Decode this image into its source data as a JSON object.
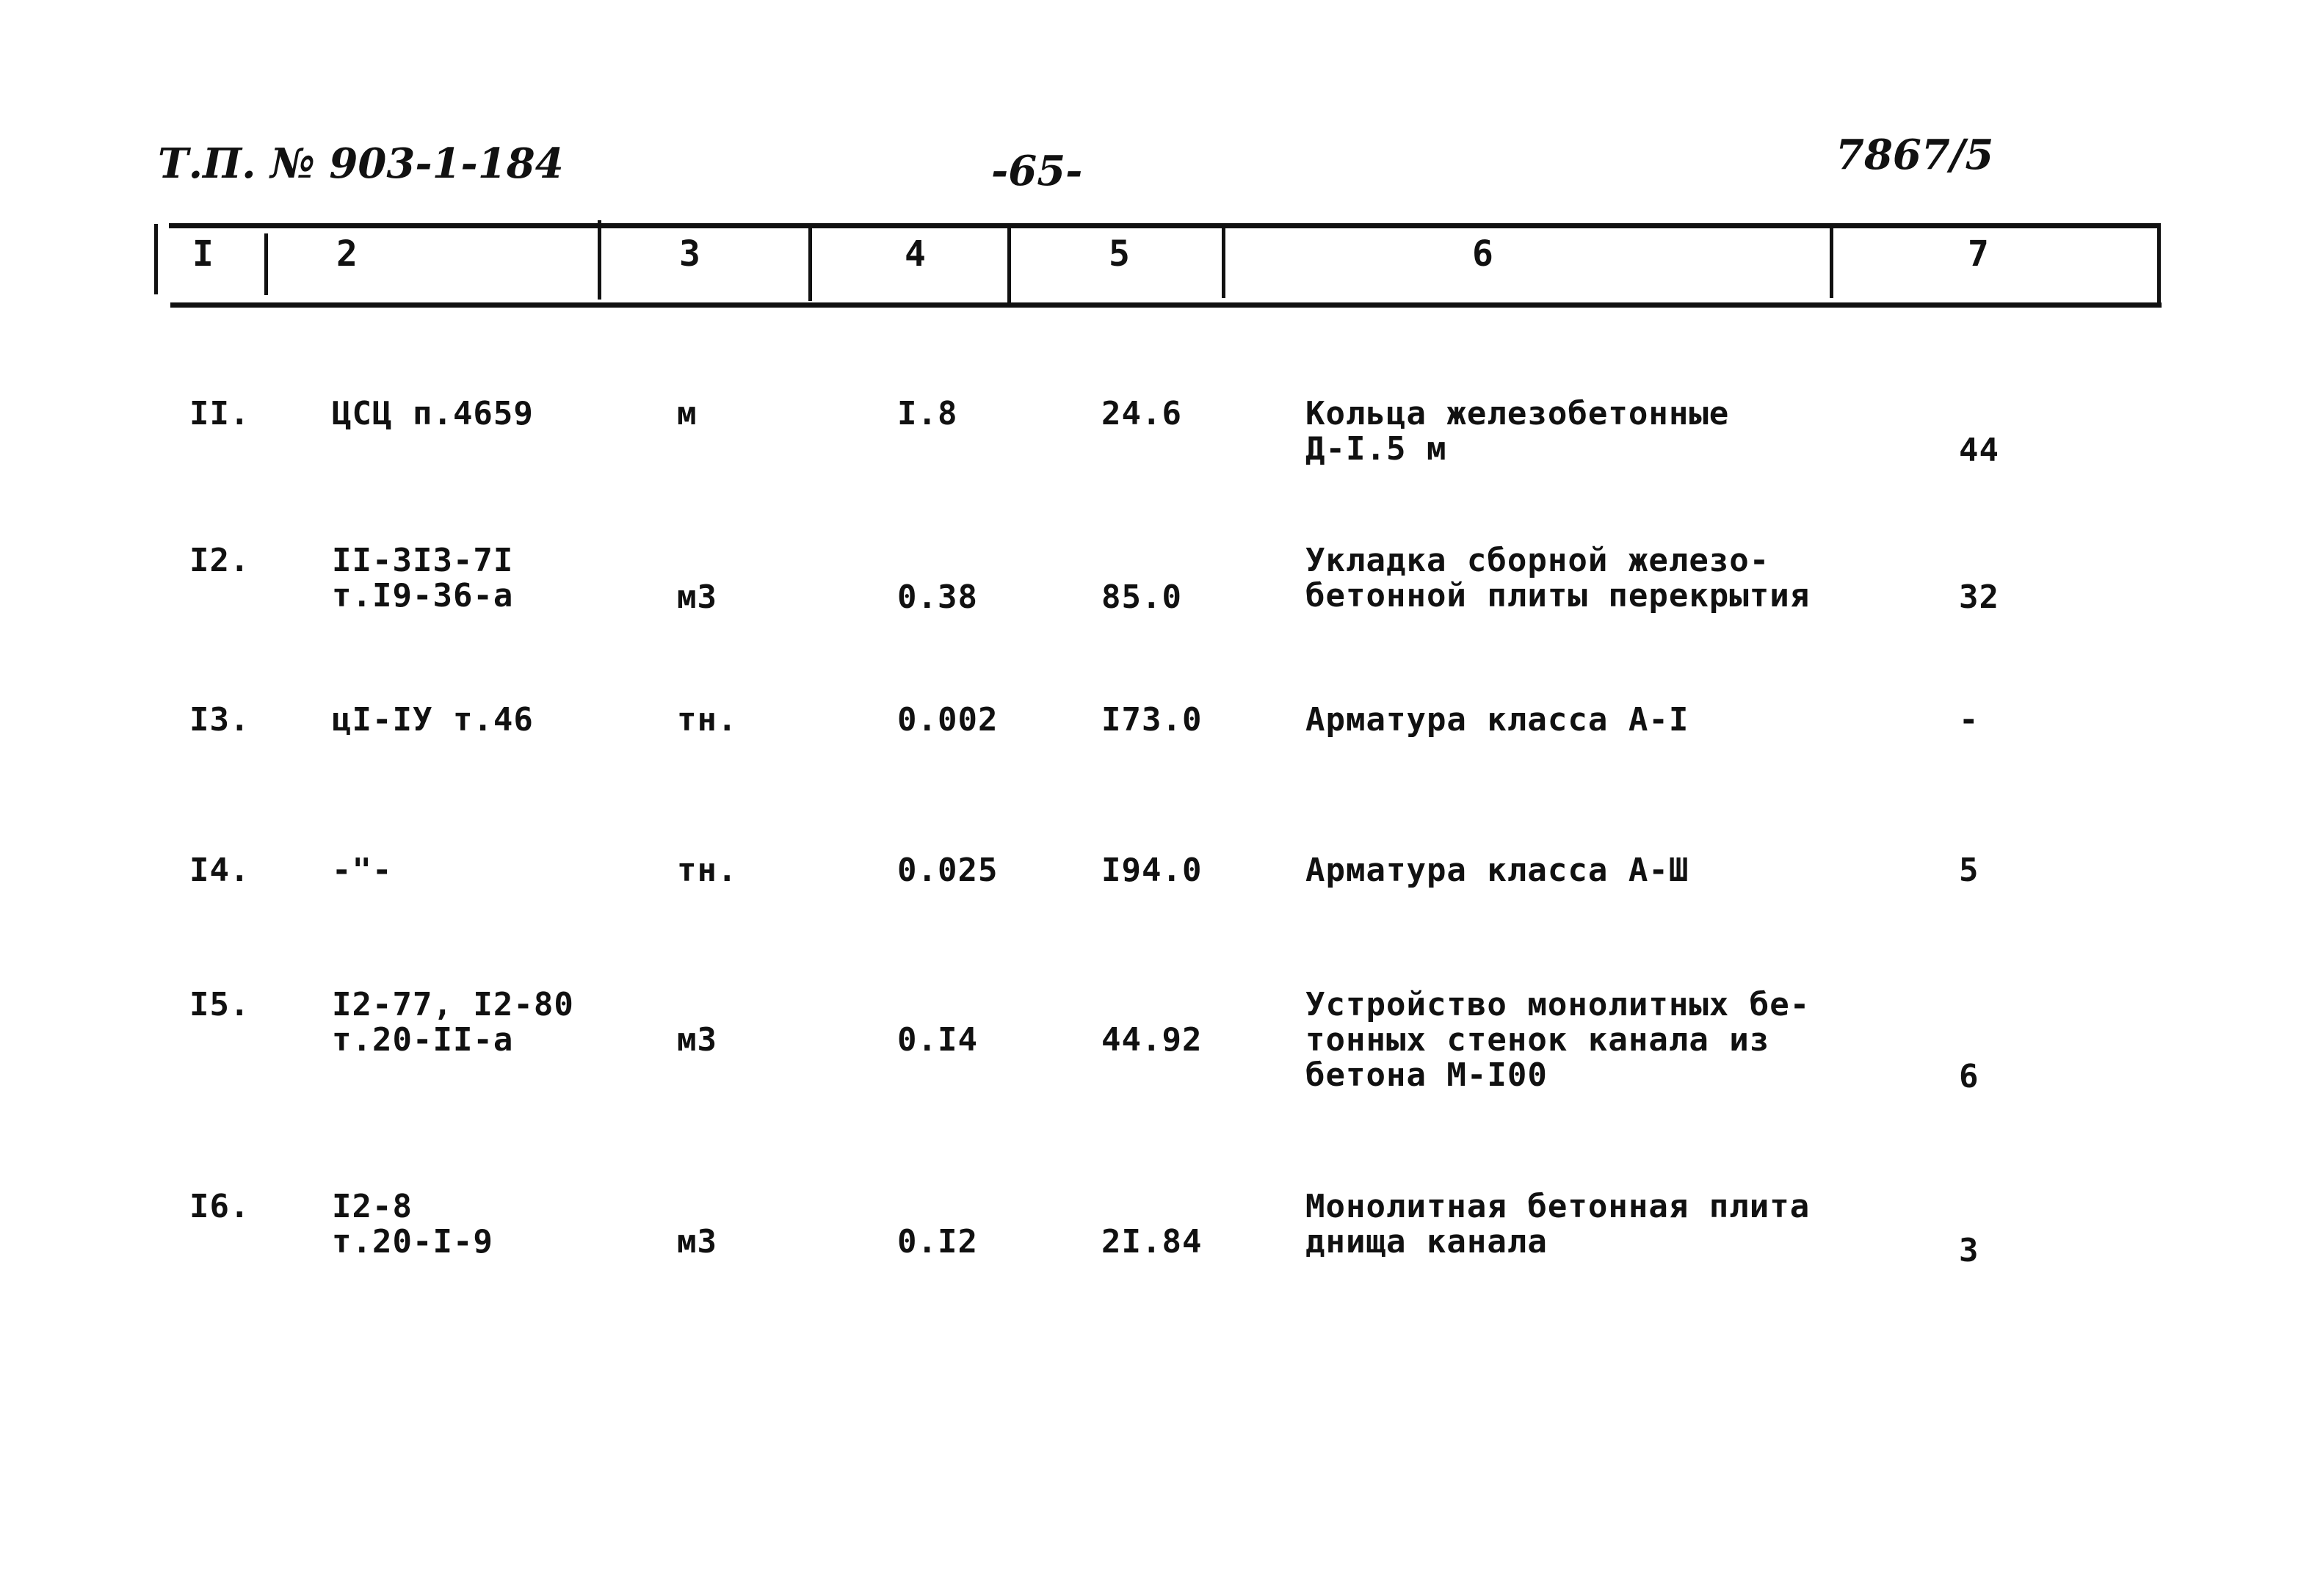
{
  "header": {
    "doc_number": "Т.П. № 903-1-184",
    "page_number": "-65-",
    "sheet_code": "7867/5"
  },
  "columns": [
    "I",
    "2",
    "3",
    "4",
    "5",
    "6",
    "7"
  ],
  "rows": [
    {
      "num": "II.",
      "ref": [
        "ЦСЦ п.4659"
      ],
      "unit": "м",
      "qty": "I.8",
      "price": "24.6",
      "desc": [
        "Кольца железобетонные",
        "Д-I.5 м"
      ],
      "total": "44"
    },
    {
      "num": "I2.",
      "ref": [
        "II-3I3-7I",
        "т.I9-36-а"
      ],
      "unit": "м3",
      "qty": "0.38",
      "price": "85.0",
      "desc": [
        "Укладка сборной железо-",
        "бетонной плиты перекрытия"
      ],
      "total": "32"
    },
    {
      "num": "I3.",
      "ref": [
        "цI-IУ т.46"
      ],
      "unit": "тн.",
      "qty": "0.002",
      "price": "I73.0",
      "desc": [
        "Арматура класса А-I"
      ],
      "total": "-"
    },
    {
      "num": "I4.",
      "ref": [
        "-\"-"
      ],
      "unit": "тн.",
      "qty": "0.025",
      "price": "I94.0",
      "desc": [
        "Арматура класса А-Ш"
      ],
      "total": "5"
    },
    {
      "num": "I5.",
      "ref": [
        "I2-77, I2-80",
        "т.20-II-а"
      ],
      "unit": "м3",
      "qty": "0.I4",
      "price": "44.92",
      "desc": [
        "Устройство монолитных бе-",
        "тонных стенок канала из",
        "бетона М-I00"
      ],
      "total": "6"
    },
    {
      "num": "I6.",
      "ref": [
        "I2-8",
        "т.20-I-9"
      ],
      "unit": "м3",
      "qty": "0.I2",
      "price": "2I.84",
      "desc": [
        "Монолитная бетонная плита",
        "днища канала"
      ],
      "total": "3"
    }
  ]
}
